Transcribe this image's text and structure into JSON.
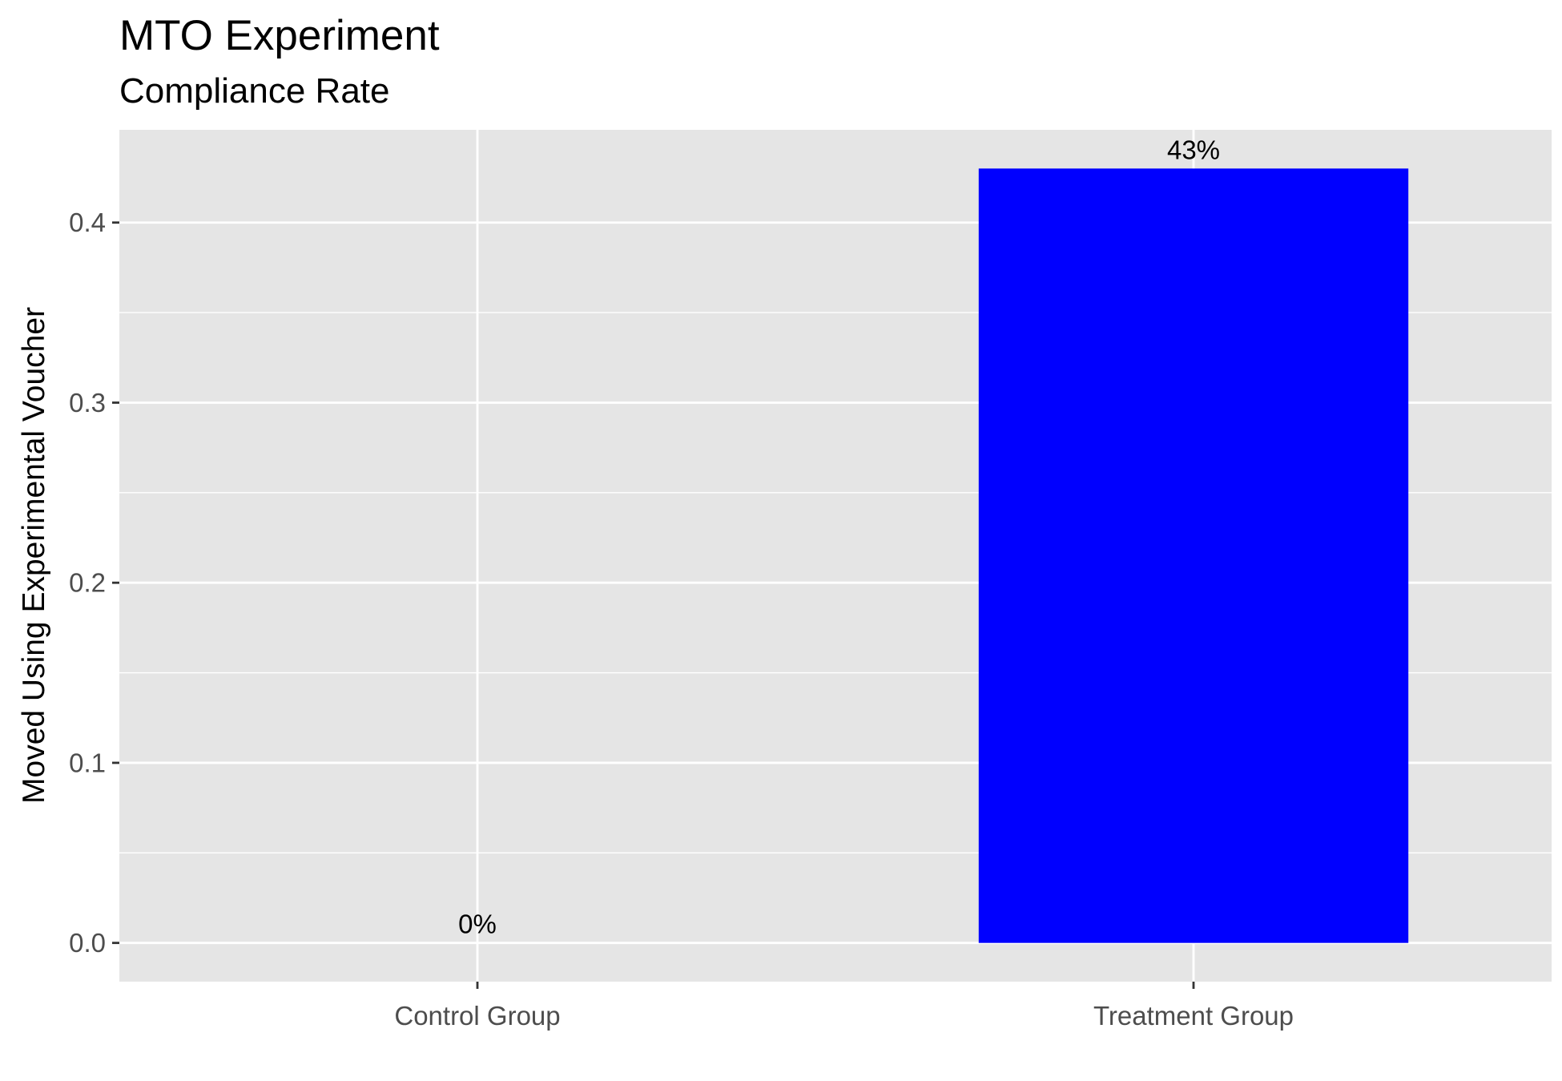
{
  "chart_data": {
    "type": "bar",
    "title": "MTO Experiment",
    "subtitle": "Compliance Rate",
    "xlabel": "",
    "ylabel": "Moved Using Experimental Voucher",
    "categories": [
      "Control Group",
      "Treatment Group"
    ],
    "values": [
      0.0,
      0.43
    ],
    "data_labels": [
      "0%",
      "43%"
    ],
    "yticks": [
      0.0,
      0.1,
      0.2,
      0.3,
      0.4
    ],
    "ytick_labels": [
      "0.0",
      "0.1",
      "0.2",
      "0.3",
      "0.4"
    ],
    "ylim": [
      -0.0215,
      0.4515
    ],
    "grid": true,
    "legend": "none",
    "colors": {
      "bar": "#0000FF",
      "panel_background": "#E5E5E5",
      "grid": "#FFFFFF",
      "text": "#000000",
      "tick_text": "#4D4D4D",
      "tick_mark": "#333333"
    }
  }
}
